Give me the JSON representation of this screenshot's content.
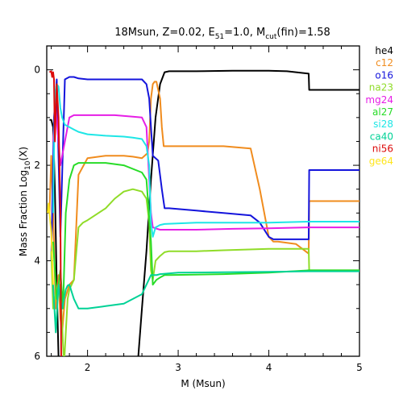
{
  "chart_data": {
    "type": "line",
    "title": "18Msun, Z=0.02, E",
    "title_sub": "51",
    "title_mid": "=1.0, M",
    "title_sub2": "cut",
    "title_end": "(fin)=1.58",
    "xlabel": "M (Msun)",
    "ylabel_pre": "Mass Fraction Log",
    "ylabel_sub": "10",
    "ylabel_post": "(X)",
    "xlim": [
      1.55,
      5.0
    ],
    "ylim": [
      -6,
      0.5
    ],
    "x_ticks": [
      2,
      3,
      4,
      5
    ],
    "x_tick_labels": [
      "2",
      "3",
      "4",
      "5"
    ],
    "y_ticks": [
      0,
      -2,
      -4,
      -6
    ],
    "y_tick_labels": [
      "0",
      "2",
      "4",
      "6"
    ],
    "legend_position": "right-outside",
    "series": [
      {
        "name": "he4",
        "color": "#000000",
        "x": [
          1.58,
          1.6,
          1.62,
          1.64,
          1.66,
          1.68,
          1.7,
          2.0,
          2.3,
          2.5,
          2.56,
          2.6,
          2.65,
          2.7,
          2.75,
          2.8,
          2.85,
          2.9,
          3.2,
          3.6,
          4.0,
          4.2,
          4.3,
          4.44,
          4.445,
          4.7,
          5.0
        ],
        "y": [
          -1.05,
          -1.05,
          -1.2,
          -2.5,
          -4.5,
          -6.0,
          -6.5,
          -6.5,
          -6.5,
          -6.5,
          -6.0,
          -5.0,
          -3.8,
          -2.3,
          -1.0,
          -0.3,
          -0.05,
          -0.03,
          -0.03,
          -0.02,
          -0.02,
          -0.03,
          -0.05,
          -0.08,
          -0.42,
          -0.42,
          -0.42
        ]
      },
      {
        "name": "c12",
        "color": "#f08c1e",
        "x": [
          1.58,
          1.6,
          1.62,
          1.65,
          1.68,
          1.7,
          1.72,
          1.75,
          1.8,
          1.85,
          1.9,
          2.0,
          2.2,
          2.4,
          2.5,
          2.6,
          2.66,
          2.68,
          2.7,
          2.72,
          2.74,
          2.76,
          2.8,
          2.82,
          2.84,
          2.9,
          3.5,
          3.8,
          3.9,
          4.0,
          4.05,
          4.1,
          4.3,
          4.44,
          4.445,
          5.0
        ],
        "y": [
          -3.0,
          -1.8,
          -3.0,
          -5.0,
          -4.3,
          -5.2,
          -5.5,
          -4.8,
          -4.5,
          -4.4,
          -2.2,
          -1.85,
          -1.8,
          -1.8,
          -1.82,
          -1.85,
          -1.75,
          -1.5,
          -0.6,
          -0.3,
          -0.25,
          -0.25,
          -0.6,
          -1.2,
          -1.6,
          -1.6,
          -1.6,
          -1.65,
          -2.5,
          -3.5,
          -3.6,
          -3.6,
          -3.65,
          -3.85,
          -2.75,
          -2.75
        ]
      },
      {
        "name": "o16",
        "color": "#1414dc",
        "x": [
          1.6,
          1.63,
          1.66,
          1.7,
          1.75,
          1.8,
          1.85,
          1.9,
          2.0,
          2.3,
          2.6,
          2.65,
          2.68,
          2.7,
          2.72,
          2.78,
          2.82,
          2.85,
          2.9,
          3.2,
          3.5,
          3.8,
          3.9,
          4.0,
          4.05,
          4.2,
          4.3,
          4.44,
          4.445,
          5.0
        ],
        "y": [
          -4.0,
          -1.0,
          -0.2,
          -3.5,
          -0.2,
          -0.15,
          -0.15,
          -0.18,
          -0.2,
          -0.2,
          -0.2,
          -0.3,
          -0.6,
          -1.2,
          -1.8,
          -1.9,
          -2.5,
          -2.9,
          -2.9,
          -2.95,
          -3.0,
          -3.05,
          -3.2,
          -3.5,
          -3.55,
          -3.55,
          -3.55,
          -3.55,
          -2.1,
          -2.1
        ]
      },
      {
        "name": "na23",
        "color": "#90dc28",
        "x": [
          1.6,
          1.62,
          1.66,
          1.7,
          1.74,
          1.78,
          1.8,
          1.85,
          1.9,
          1.95,
          2.0,
          2.2,
          2.3,
          2.4,
          2.5,
          2.6,
          2.65,
          2.68,
          2.7,
          2.72,
          2.75,
          2.8,
          2.85,
          2.9,
          3.2,
          3.5,
          4.0,
          4.2,
          4.44,
          4.445,
          5.0
        ],
        "y": [
          -3.8,
          -5.0,
          -4.6,
          -4.5,
          -6.2,
          -4.8,
          -4.6,
          -4.4,
          -3.3,
          -3.2,
          -3.15,
          -2.9,
          -2.7,
          -2.55,
          -2.5,
          -2.55,
          -2.7,
          -3.2,
          -4.2,
          -4.4,
          -4.0,
          -3.9,
          -3.82,
          -3.8,
          -3.8,
          -3.78,
          -3.75,
          -3.75,
          -3.75,
          -4.2,
          -4.2
        ]
      },
      {
        "name": "mg24",
        "color": "#e61ee6",
        "x": [
          1.62,
          1.65,
          1.7,
          1.75,
          1.8,
          1.85,
          1.9,
          2.0,
          2.3,
          2.5,
          2.6,
          2.65,
          2.7,
          2.72,
          2.75,
          2.8,
          2.85,
          3.2,
          3.6,
          4.0,
          4.44,
          5.0
        ],
        "y": [
          -1.5,
          -0.8,
          -2.0,
          -1.5,
          -1.0,
          -0.95,
          -0.95,
          -0.95,
          -0.95,
          -0.98,
          -1.0,
          -1.2,
          -3.0,
          -3.3,
          -3.32,
          -3.35,
          -3.35,
          -3.35,
          -3.33,
          -3.32,
          -3.3,
          -3.3
        ]
      },
      {
        "name": "al27",
        "color": "#28dc28",
        "x": [
          1.62,
          1.66,
          1.7,
          1.73,
          1.76,
          1.8,
          1.85,
          1.9,
          2.0,
          2.2,
          2.4,
          2.6,
          2.65,
          2.7,
          2.72,
          2.76,
          2.8,
          2.85,
          2.9,
          3.5,
          4.0,
          4.44,
          5.0
        ],
        "y": [
          -3.6,
          -4.8,
          -4.2,
          -5.0,
          -3.0,
          -2.3,
          -2.0,
          -1.95,
          -1.95,
          -1.95,
          -2.0,
          -2.15,
          -2.3,
          -3.6,
          -4.5,
          -4.4,
          -4.35,
          -4.3,
          -4.3,
          -4.28,
          -4.25,
          -4.2,
          -4.2
        ]
      },
      {
        "name": "si28",
        "color": "#1ee6e6",
        "x": [
          1.62,
          1.64,
          1.66,
          1.68,
          1.7,
          1.72,
          1.75,
          1.8,
          1.85,
          1.9,
          2.0,
          2.2,
          2.4,
          2.5,
          2.6,
          2.65,
          2.68,
          2.7,
          2.72,
          2.75,
          2.8,
          2.85,
          3.2,
          3.6,
          4.0,
          4.44,
          5.0
        ],
        "y": [
          -3.0,
          -0.5,
          -0.3,
          -0.35,
          -0.8,
          -1.0,
          -1.15,
          -1.2,
          -1.25,
          -1.3,
          -1.35,
          -1.38,
          -1.4,
          -1.42,
          -1.45,
          -1.6,
          -2.0,
          -3.2,
          -3.5,
          -3.3,
          -3.25,
          -3.23,
          -3.2,
          -3.2,
          -3.2,
          -3.18,
          -3.18
        ]
      },
      {
        "name": "ca40",
        "color": "#00d296",
        "x": [
          1.62,
          1.65,
          1.68,
          1.7,
          1.72,
          1.74,
          1.76,
          1.78,
          1.8,
          1.85,
          1.9,
          2.0,
          2.2,
          2.4,
          2.6,
          2.65,
          2.7,
          2.72,
          2.76,
          2.8,
          3.0,
          3.5,
          4.0,
          4.44,
          5.0
        ],
        "y": [
          -4.5,
          -5.5,
          -4.5,
          -4.8,
          -5.0,
          -4.8,
          -4.6,
          -4.52,
          -4.5,
          -4.8,
          -5.0,
          -5.0,
          -4.95,
          -4.9,
          -4.7,
          -4.5,
          -4.3,
          -4.3,
          -4.3,
          -4.28,
          -4.25,
          -4.24,
          -4.23,
          -4.22,
          -4.22
        ]
      },
      {
        "name": "ni56",
        "color": "#dc0a0a",
        "x": [
          1.58,
          1.6,
          1.61,
          1.62,
          1.63,
          1.64,
          1.66,
          1.68,
          1.7,
          1.71
        ],
        "y": [
          -0.05,
          -0.03,
          -0.15,
          -0.05,
          -0.2,
          -1.5,
          -0.3,
          -1.0,
          -3.0,
          -6.2
        ]
      },
      {
        "name": "ge64",
        "color": "#ffe61e",
        "x": [
          1.56,
          1.57,
          1.58,
          1.6,
          1.62
        ],
        "y": [
          -3.0,
          -2.8,
          -3.0,
          -3.4,
          -4.5
        ]
      }
    ]
  }
}
